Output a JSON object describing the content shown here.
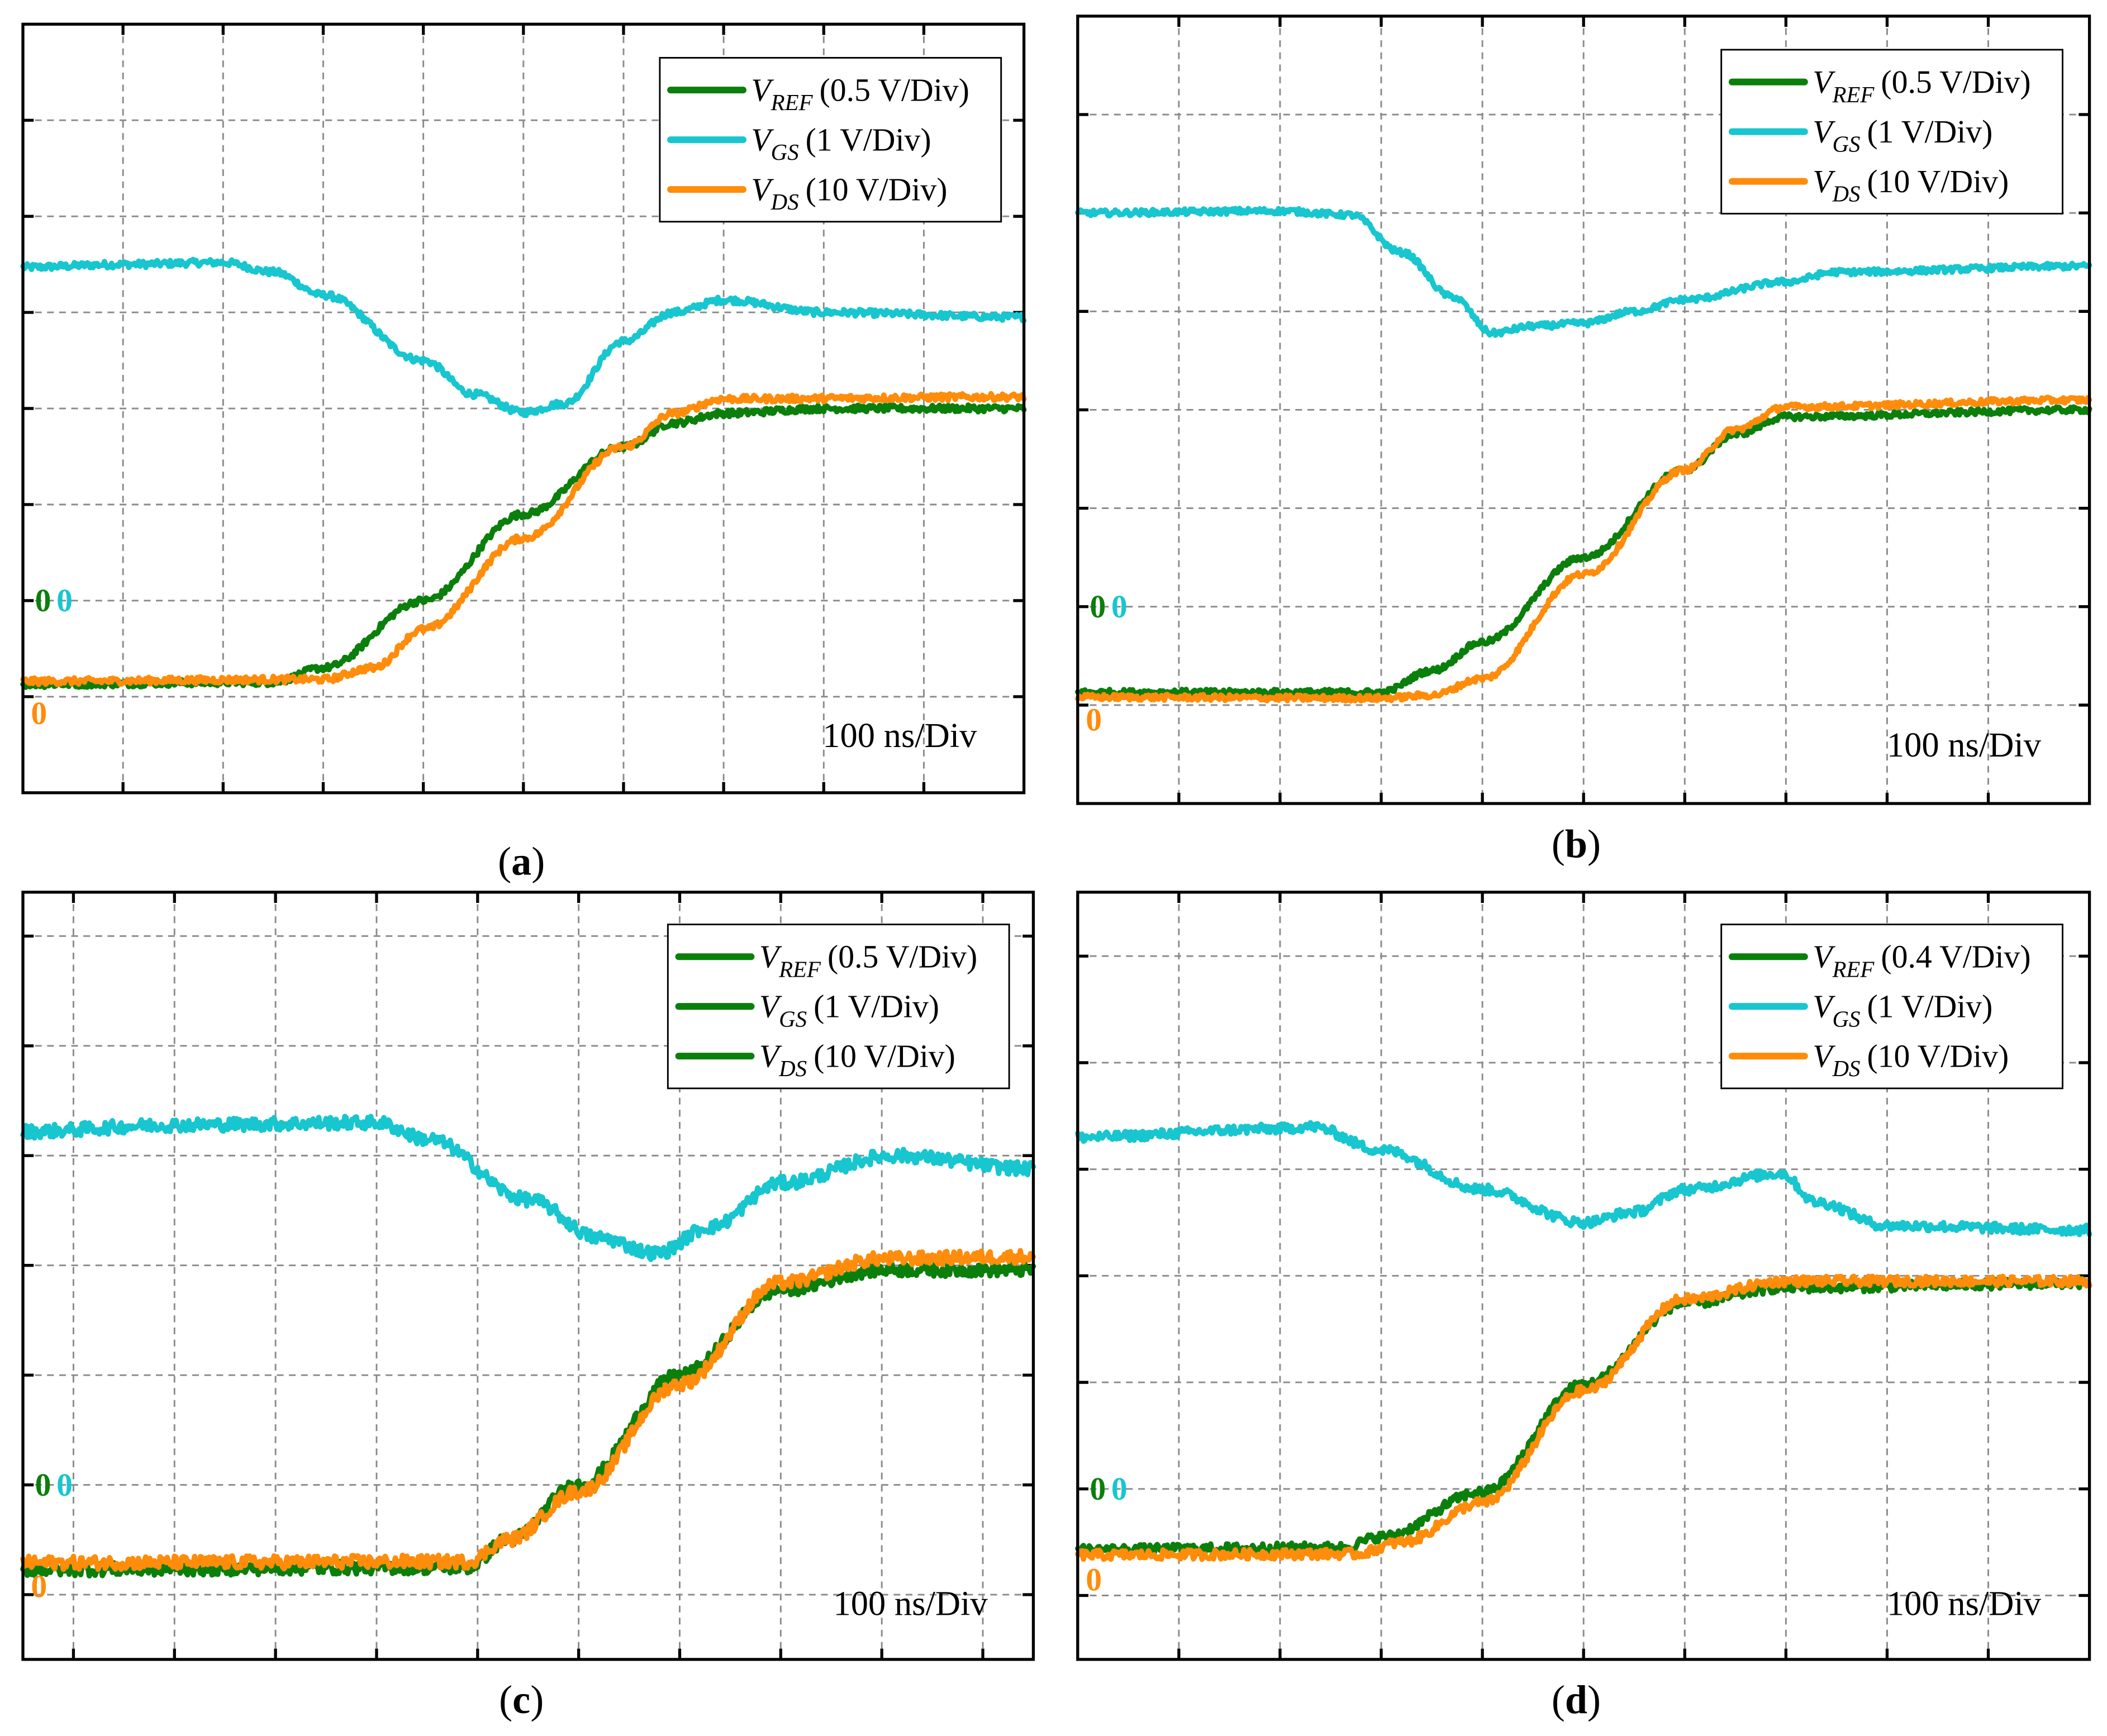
{
  "colors": {
    "vref": "#0b7f0b",
    "vgs": "#17c6cf",
    "vds": "#ff8c0a",
    "grid": "#8a8a8a"
  },
  "chart_data": [
    {
      "type": "line",
      "caption": "(a)",
      "caption_letter": "a",
      "time_scale": "100 ns/Div",
      "xlim": [
        0,
        10
      ],
      "ylim": [
        0,
        8
      ],
      "grid": true,
      "legend_placement": "top-right",
      "zero_markers": {
        "vref": 2,
        "vgs": 2,
        "vds": 1.05
      },
      "series": [
        {
          "key": "vref",
          "sym": "V",
          "sub": "REF",
          "scale": "(0.5 V/Div)",
          "color": "#0b7f0b",
          "legend_color": "#0b7f0b",
          "points": [
            [
              0,
              1.13
            ],
            [
              2.5,
              1.15
            ],
            [
              3,
              1.3
            ],
            [
              4,
              2.0
            ],
            [
              5,
              2.9
            ],
            [
              6,
              3.6
            ],
            [
              6.5,
              3.85
            ],
            [
              7,
              3.95
            ],
            [
              8,
              4.0
            ],
            [
              10,
              4.0
            ]
          ]
        },
        {
          "key": "vgs",
          "sym": "V",
          "sub": "GS",
          "scale": "(1 V/Div)",
          "color": "#17c6cf",
          "legend_color": "#17c6cf",
          "points": [
            [
              0,
              5.47
            ],
            [
              1,
              5.5
            ],
            [
              2,
              5.52
            ],
            [
              2.5,
              5.42
            ],
            [
              3,
              5.18
            ],
            [
              4,
              4.5
            ],
            [
              4.5,
              4.15
            ],
            [
              5,
              3.96
            ],
            [
              5.4,
              4.05
            ],
            [
              6,
              4.7
            ],
            [
              6.5,
              5.0
            ],
            [
              7,
              5.13
            ],
            [
              8,
              5.0
            ],
            [
              10,
              4.95
            ]
          ]
        },
        {
          "key": "vds",
          "sym": "V",
          "sub": "DS",
          "scale": "(10 V/Div)",
          "color": "#ff8c0a",
          "legend_color": "#ff8c0a",
          "points": [
            [
              0,
              1.16
            ],
            [
              3,
              1.18
            ],
            [
              3.5,
              1.3
            ],
            [
              4,
              1.7
            ],
            [
              5,
              2.65
            ],
            [
              6,
              3.6
            ],
            [
              6.5,
              3.95
            ],
            [
              7,
              4.1
            ],
            [
              10,
              4.12
            ]
          ]
        }
      ]
    },
    {
      "type": "line",
      "caption": "(b)",
      "caption_letter": "b",
      "time_scale": "100 ns/Div",
      "xlim": [
        0,
        10
      ],
      "ylim": [
        0,
        8
      ],
      "grid": true,
      "legend_placement": "top-right",
      "zero_markers": {
        "vref": 2,
        "vgs": 2,
        "vds": 1.07
      },
      "series": [
        {
          "key": "vref",
          "sym": "V",
          "sub": "REF",
          "scale": "(0.5 V/Div)",
          "color": "#0b7f0b",
          "legend_color": "#0b7f0b",
          "points": [
            [
              0,
              1.13
            ],
            [
              3,
              1.13
            ],
            [
              3.5,
              1.35
            ],
            [
              4,
              1.64
            ],
            [
              5,
              2.5
            ],
            [
              6,
              3.39
            ],
            [
              6.5,
              3.75
            ],
            [
              7,
              3.93
            ],
            [
              10,
              4.0
            ]
          ]
        },
        {
          "key": "vgs",
          "sym": "V",
          "sub": "GS",
          "scale": "(1 V/Div)",
          "color": "#17c6cf",
          "legend_color": "#17c6cf",
          "points": [
            [
              0,
              6.0
            ],
            [
              2,
              6.02
            ],
            [
              2.7,
              5.98
            ],
            [
              3.2,
              5.6
            ],
            [
              3.7,
              5.15
            ],
            [
              4.1,
              4.78
            ],
            [
              4.5,
              4.85
            ],
            [
              5,
              4.88
            ],
            [
              5.5,
              5.0
            ],
            [
              6,
              5.12
            ],
            [
              7,
              5.3
            ],
            [
              7.5,
              5.4
            ],
            [
              10,
              5.46
            ]
          ]
        },
        {
          "key": "vds",
          "sym": "V",
          "sub": "DS",
          "scale": "(10 V/Div)",
          "color": "#ff8c0a",
          "legend_color": "#ff8c0a",
          "points": [
            [
              0,
              1.08
            ],
            [
              3,
              1.07
            ],
            [
              3.5,
              1.1
            ],
            [
              4,
              1.27
            ],
            [
              5,
              2.33
            ],
            [
              6,
              3.39
            ],
            [
              6.5,
              3.8
            ],
            [
              7,
              4.03
            ],
            [
              10,
              4.1
            ]
          ]
        }
      ]
    },
    {
      "type": "line",
      "caption": "(c)",
      "caption_letter": "c",
      "time_scale": "100 ns/Div",
      "xlim": [
        -0.5,
        9.5
      ],
      "ylim": [
        -0.59,
        6.4
      ],
      "grid": true,
      "legend_placement": "top-right",
      "zero_markers": {
        "vref": 1,
        "vgs": 1,
        "vds": 0.27
      },
      "series": [
        {
          "key": "vref",
          "sym": "V",
          "sub": "REF",
          "scale": "(0.5 V/Div)",
          "color": "#0b7f0b",
          "legend_color": "#0b7f0b",
          "points": [
            [
              -0.5,
              0.23
            ],
            [
              3.9,
              0.25
            ],
            [
              4.3,
              0.5
            ],
            [
              5,
              1.0
            ],
            [
              6,
              2.0
            ],
            [
              7,
              2.78
            ],
            [
              8,
              2.96
            ],
            [
              9.5,
              2.96
            ]
          ]
        },
        {
          "key": "vgs",
          "sym": "V",
          "sub": "GS",
          "scale": "(1 V/Div)",
          "color": "#17c6cf",
          "legend_color": "#0b7f0b",
          "points": [
            [
              -0.5,
              4.22
            ],
            [
              1,
              4.28
            ],
            [
              3,
              4.3
            ],
            [
              3.5,
              4.15
            ],
            [
              4.5,
              3.6
            ],
            [
              5.2,
              3.25
            ],
            [
              5.77,
              3.11
            ],
            [
              6.3,
              3.35
            ],
            [
              7,
              3.75
            ],
            [
              8.1,
              4.0
            ],
            [
              9.5,
              3.88
            ]
          ]
        },
        {
          "key": "vds",
          "sym": "V",
          "sub": "DS",
          "scale": "(10 V/Div)",
          "color": "#ff8c0a",
          "legend_color": "#0b7f0b",
          "points": [
            [
              -0.5,
              0.29
            ],
            [
              3.9,
              0.3
            ],
            [
              4.3,
              0.5
            ],
            [
              5,
              0.94
            ],
            [
              6,
              1.92
            ],
            [
              7,
              2.84
            ],
            [
              8,
              3.06
            ],
            [
              9.5,
              3.08
            ]
          ]
        }
      ]
    },
    {
      "type": "line",
      "caption": "(d)",
      "caption_letter": "d",
      "time_scale": "100 ns/Div",
      "xlim": [
        0,
        10
      ],
      "ylim": [
        -0.6,
        6.6
      ],
      "grid": true,
      "legend_placement": "top-right",
      "zero_markers": {
        "vref": 1,
        "vgs": 1,
        "vds": 0.35
      },
      "series": [
        {
          "key": "vref",
          "sym": "V",
          "sub": "REF",
          "scale": "(0.4 V/Div)",
          "color": "#0b7f0b",
          "legend_color": "#0b7f0b",
          "points": [
            [
              0,
              0.43
            ],
            [
              2.6,
              0.45
            ],
            [
              3,
              0.55
            ],
            [
              4,
              0.97
            ],
            [
              5,
              1.98
            ],
            [
              6,
              2.74
            ],
            [
              7,
              2.89
            ],
            [
              10,
              2.93
            ]
          ]
        },
        {
          "key": "vgs",
          "sym": "V",
          "sub": "GS",
          "scale": "(1 V/Div)",
          "color": "#17c6cf",
          "legend_color": "#17c6cf",
          "points": [
            [
              0,
              4.3
            ],
            [
              2,
              4.38
            ],
            [
              2.3,
              4.4
            ],
            [
              3,
              4.18
            ],
            [
              4,
              3.81
            ],
            [
              5,
              3.5
            ],
            [
              5.5,
              3.6
            ],
            [
              6,
              3.81
            ],
            [
              6.95,
              3.96
            ],
            [
              7.3,
              3.69
            ],
            [
              8,
              3.47
            ],
            [
              10,
              3.43
            ]
          ]
        },
        {
          "key": "vds",
          "sym": "V",
          "sub": "DS",
          "scale": "(10 V/Div)",
          "color": "#ff8c0a",
          "legend_color": "#ff8c0a",
          "points": [
            [
              0,
              0.38
            ],
            [
              2.75,
              0.39
            ],
            [
              3.2,
              0.5
            ],
            [
              4,
              0.87
            ],
            [
              5,
              1.92
            ],
            [
              6,
              2.78
            ],
            [
              7,
              2.95
            ],
            [
              10,
              2.95
            ]
          ]
        }
      ]
    }
  ]
}
